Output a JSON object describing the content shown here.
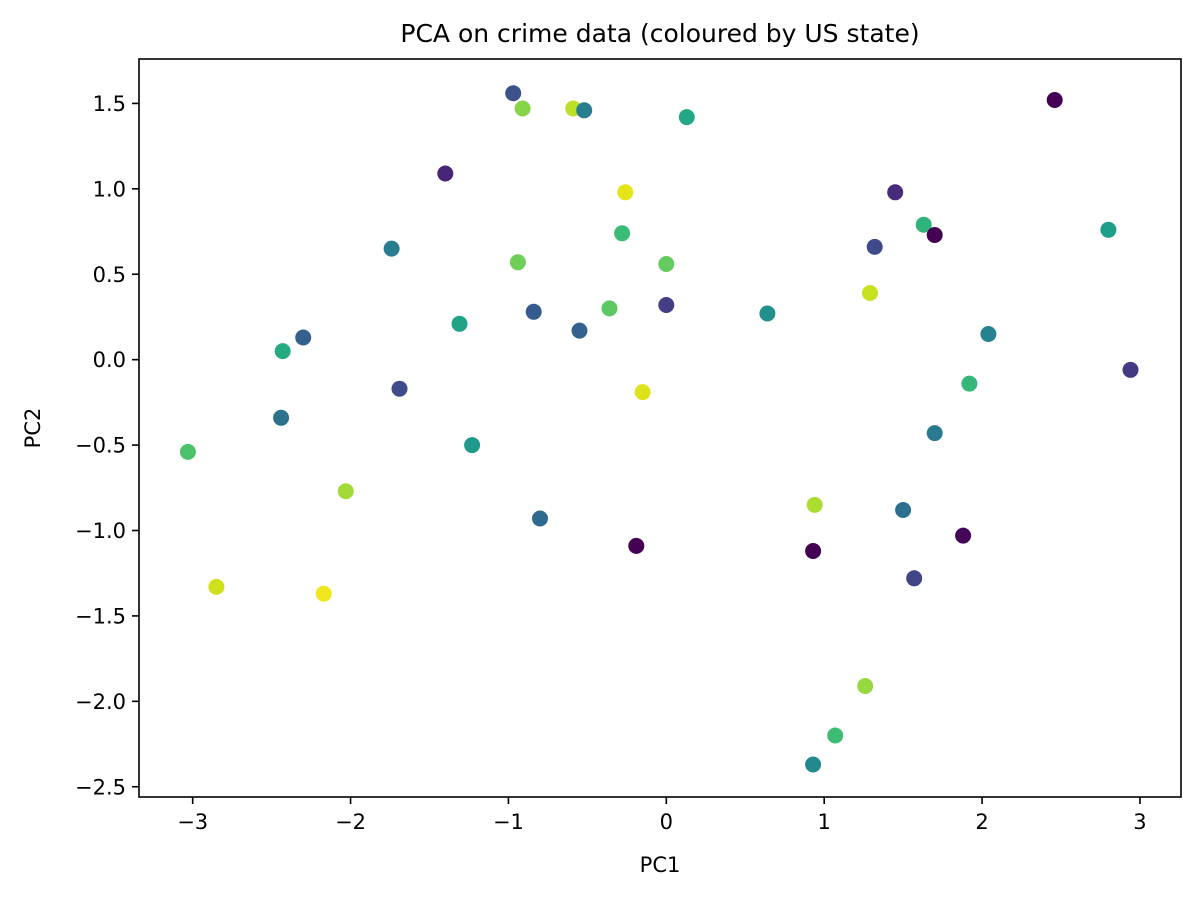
{
  "chart_data": {
    "type": "scatter",
    "title": "PCA on crime data (coloured by US state)",
    "xlabel": "PC1",
    "ylabel": "PC2",
    "xlim": [
      -3.34,
      3.26
    ],
    "ylim": [
      -2.56,
      1.76
    ],
    "xticks": [
      {
        "value": -3,
        "label": "−3"
      },
      {
        "value": -2,
        "label": "−2"
      },
      {
        "value": -1,
        "label": "−1"
      },
      {
        "value": 0,
        "label": "0"
      },
      {
        "value": 1,
        "label": "1"
      },
      {
        "value": 2,
        "label": "2"
      },
      {
        "value": 3,
        "label": "3"
      }
    ],
    "yticks": [
      {
        "value": 1.5,
        "label": "1.5"
      },
      {
        "value": 1.0,
        "label": "1.0"
      },
      {
        "value": 0.5,
        "label": "0.5"
      },
      {
        "value": 0.0,
        "label": "0.0"
      },
      {
        "value": -0.5,
        "label": "−0.5"
      },
      {
        "value": -1.0,
        "label": "−1.0"
      },
      {
        "value": -1.5,
        "label": "−1.5"
      },
      {
        "value": -2.0,
        "label": "−2.0"
      },
      {
        "value": -2.5,
        "label": "−2.5"
      }
    ],
    "grid": false,
    "colormap": "viridis",
    "points": [
      {
        "x": -3.03,
        "y": -0.54,
        "color": "#4cc26c"
      },
      {
        "x": -2.85,
        "y": -1.33,
        "color": "#d0e11c"
      },
      {
        "x": -2.44,
        "y": -0.34,
        "color": "#2c728e"
      },
      {
        "x": -2.43,
        "y": 0.05,
        "color": "#25ab82"
      },
      {
        "x": -2.3,
        "y": 0.13,
        "color": "#35608d"
      },
      {
        "x": -2.17,
        "y": -1.37,
        "color": "#f1e51d"
      },
      {
        "x": -2.03,
        "y": -0.77,
        "color": "#a2da37"
      },
      {
        "x": -1.74,
        "y": 0.65,
        "color": "#287d8e"
      },
      {
        "x": -1.69,
        "y": -0.17,
        "color": "#3e4c8a"
      },
      {
        "x": -1.4,
        "y": 1.09,
        "color": "#482677"
      },
      {
        "x": -1.31,
        "y": 0.21,
        "color": "#20a386"
      },
      {
        "x": -1.23,
        "y": -0.5,
        "color": "#1f9a8a"
      },
      {
        "x": -0.97,
        "y": 1.56,
        "color": "#3b528b"
      },
      {
        "x": -0.94,
        "y": 0.57,
        "color": "#6ece58"
      },
      {
        "x": -0.91,
        "y": 1.47,
        "color": "#86d549"
      },
      {
        "x": -0.84,
        "y": 0.28,
        "color": "#365c8d"
      },
      {
        "x": -0.8,
        "y": -0.93,
        "color": "#2f6b8e"
      },
      {
        "x": -0.59,
        "y": 1.47,
        "color": "#bddf26"
      },
      {
        "x": -0.55,
        "y": 0.17,
        "color": "#33638d"
      },
      {
        "x": -0.52,
        "y": 1.46,
        "color": "#287d8e"
      },
      {
        "x": -0.36,
        "y": 0.3,
        "color": "#5ec962"
      },
      {
        "x": -0.28,
        "y": 0.74,
        "color": "#3bbb75"
      },
      {
        "x": -0.26,
        "y": 0.98,
        "color": "#e5e419"
      },
      {
        "x": -0.19,
        "y": -1.09,
        "color": "#440154"
      },
      {
        "x": -0.15,
        "y": -0.19,
        "color": "#dde318"
      },
      {
        "x": 0.0,
        "y": 0.56,
        "color": "#63cb5f"
      },
      {
        "x": 0.0,
        "y": 0.32,
        "color": "#433e85"
      },
      {
        "x": 0.13,
        "y": 1.42,
        "color": "#22a884"
      },
      {
        "x": 0.64,
        "y": 0.27,
        "color": "#21908d"
      },
      {
        "x": 0.93,
        "y": -1.12,
        "color": "#440154"
      },
      {
        "x": 0.93,
        "y": -2.37,
        "color": "#23898e"
      },
      {
        "x": 0.94,
        "y": -0.85,
        "color": "#addc30"
      },
      {
        "x": 1.07,
        "y": -2.2,
        "color": "#3dbc74"
      },
      {
        "x": 1.26,
        "y": -1.91,
        "color": "#95d840"
      },
      {
        "x": 1.29,
        "y": 0.39,
        "color": "#c8e020"
      },
      {
        "x": 1.32,
        "y": 0.66,
        "color": "#3e4a89"
      },
      {
        "x": 1.45,
        "y": 0.98,
        "color": "#472c7a"
      },
      {
        "x": 1.5,
        "y": -0.88,
        "color": "#2d708e"
      },
      {
        "x": 1.57,
        "y": -1.28,
        "color": "#414487"
      },
      {
        "x": 1.63,
        "y": 0.79,
        "color": "#2fb47c"
      },
      {
        "x": 1.7,
        "y": -0.43,
        "color": "#297a8e"
      },
      {
        "x": 1.7,
        "y": 0.73,
        "color": "#440154"
      },
      {
        "x": 1.88,
        "y": -1.03,
        "color": "#450559"
      },
      {
        "x": 1.92,
        "y": -0.14,
        "color": "#35b779"
      },
      {
        "x": 2.04,
        "y": 0.15,
        "color": "#26828e"
      },
      {
        "x": 2.46,
        "y": 1.52,
        "color": "#440154"
      },
      {
        "x": 2.8,
        "y": 0.76,
        "color": "#1f9e89"
      },
      {
        "x": 2.94,
        "y": -0.06,
        "color": "#443983"
      }
    ]
  }
}
